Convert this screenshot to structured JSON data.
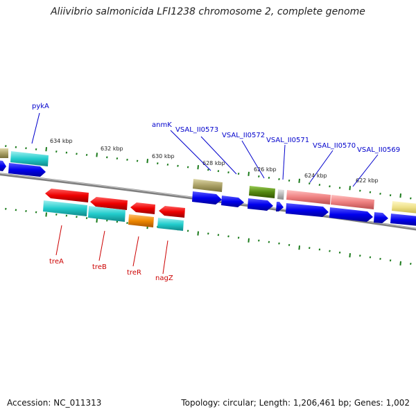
{
  "title": "Aliivibrio salmonicida LFI1238 chromosome 2, complete genome",
  "footer": {
    "accession": "Accession: NC_011313",
    "summary": "Topology: circular; Length: 1,206,461 bp; Genes: 1,002"
  },
  "colors": {
    "backbone": "#7f7f7f",
    "tick": "#1a7a1a",
    "cds": "#0000ee",
    "top_gene_label": "#0000cc",
    "bottom_gene_label": "#cc0000",
    "red_feature": "#ee0000",
    "cyan_feature": "#22cccc",
    "orange_feature": "#ee8800",
    "olive_feature": "#aaa066",
    "darkgreen_feature": "#558811",
    "salmon_feature": "#ee8080",
    "grey_feature": "#b8b8b8",
    "yellow_feature": "#eee088"
  },
  "scale_labels": [
    "634 kbp",
    "632 kbp",
    "630 kbp",
    "628 kbp",
    "626 kbp",
    "624 kbp",
    "622 kbp"
  ],
  "top_gene_labels": [
    "pykA",
    "anmK",
    "VSAL_II0573",
    "VSAL_II0572",
    "VSAL_II0571",
    "VSAL_II0570",
    "VSAL_II0569"
  ],
  "bottom_gene_labels": [
    "treA",
    "treB",
    "treR",
    "nagZ"
  ]
}
